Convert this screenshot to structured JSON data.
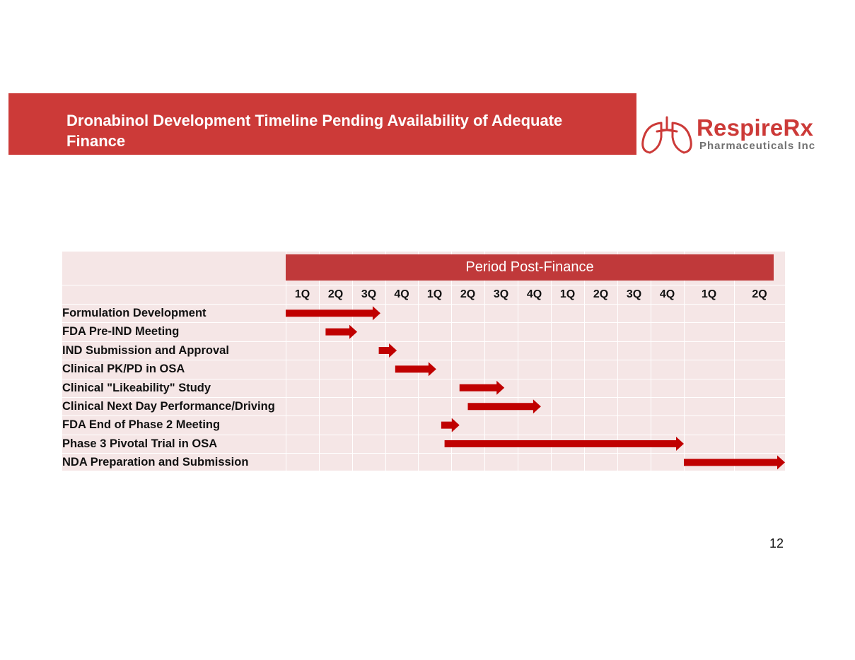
{
  "slide": {
    "title": "Dronabinol Development Timeline Pending Availability of Adequate Finance",
    "page_number": "12"
  },
  "logo": {
    "name": "RespireRx",
    "subtitle": "Pharmaceuticals Inc",
    "icon": "lungs-icon"
  },
  "colors": {
    "banner": "#cc3a38",
    "header": "#c0393a",
    "arrow": "#c00000",
    "grid": "#f5e6e6"
  },
  "chart_data": {
    "type": "gantt",
    "title": "Period Post-Finance",
    "quarters": [
      "1Q",
      "2Q",
      "3Q",
      "4Q",
      "1Q",
      "2Q",
      "3Q",
      "4Q",
      "1Q",
      "2Q",
      "3Q",
      "4Q",
      "1Q",
      "2Q"
    ],
    "tasks": [
      {
        "name": "Formulation Development",
        "start": 0.0,
        "end": 2.85
      },
      {
        "name": "FDA Pre-IND Meeting",
        "start": 1.2,
        "end": 2.15
      },
      {
        "name": "IND Submission and Approval",
        "start": 2.8,
        "end": 3.35
      },
      {
        "name": "Clinical PK/PD in OSA",
        "start": 3.3,
        "end": 4.55
      },
      {
        "name": "Clinical \"Likeability\" Study",
        "start": 5.25,
        "end": 6.6
      },
      {
        "name": "Clinical Next Day Performance/Driving",
        "start": 5.5,
        "end": 7.7
      },
      {
        "name": "FDA End of Phase 2 Meeting",
        "start": 4.7,
        "end": 5.25
      },
      {
        "name": "Phase 3 Pivotal Trial in OSA",
        "start": 4.8,
        "end": 12.0
      },
      {
        "name": "NDA Preparation and Submission",
        "start": 12.0,
        "end": 14.0
      }
    ]
  }
}
